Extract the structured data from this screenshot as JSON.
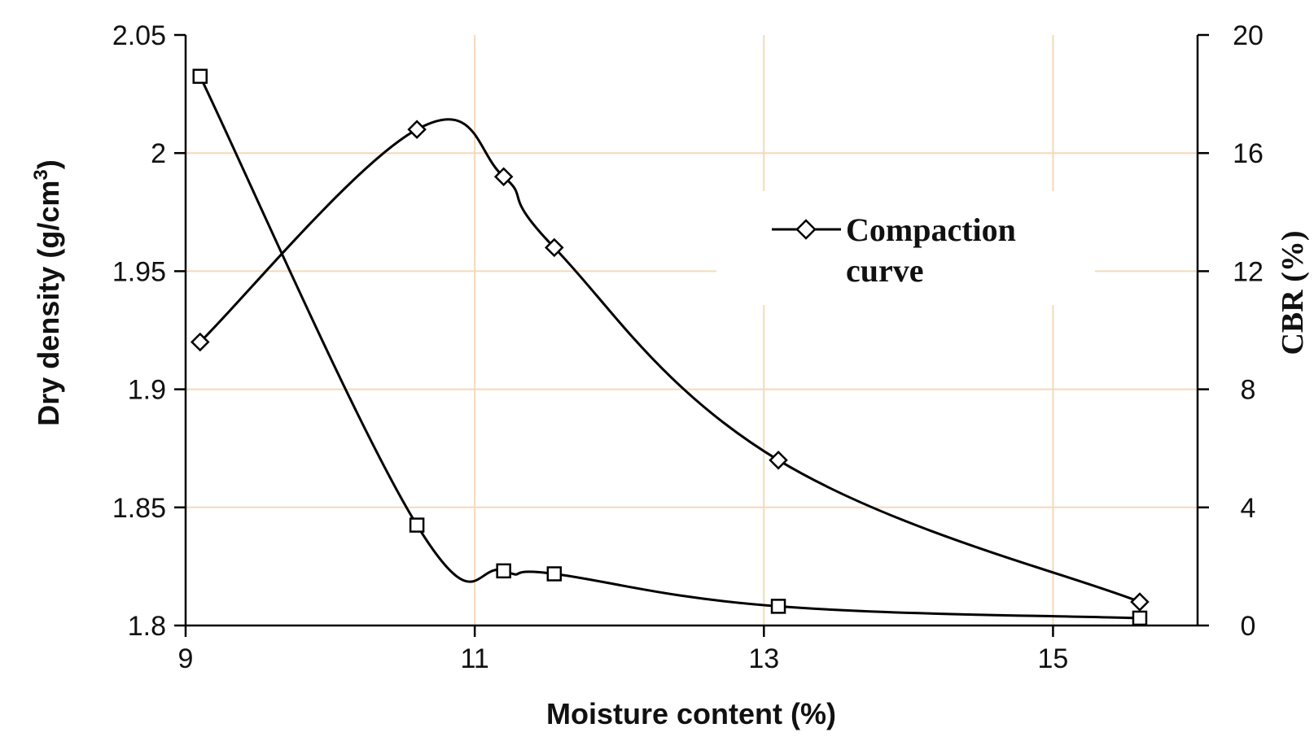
{
  "chart_data": {
    "type": "line",
    "title": "",
    "xlabel": "Moisture content (%)",
    "ylabel_left_main": "Dry  density (g/cm",
    "ylabel_left_sup": "3",
    "ylabel_left_close": ")",
    "ylabel_right": "CBR (%)",
    "xlim": [
      9,
      16
    ],
    "ylim_left": [
      1.8,
      2.05
    ],
    "ylim_right": [
      0,
      20
    ],
    "x_ticks": [
      "9",
      "11",
      "13",
      "15"
    ],
    "x_tick_values": [
      9,
      11,
      13,
      15
    ],
    "y_left_ticks": [
      "1.8",
      "1.85",
      "1.9",
      "1.95",
      "2",
      "2.05"
    ],
    "y_left_tick_values": [
      1.8,
      1.85,
      1.9,
      1.95,
      2.0,
      2.05
    ],
    "y_right_ticks": [
      "0",
      "4",
      "8",
      "12",
      "16",
      "20"
    ],
    "y_right_tick_values": [
      0,
      4,
      8,
      12,
      16,
      20
    ],
    "grid": true,
    "grid_color": "#f5d9b8",
    "line_color": "#000000",
    "legend_position": "upper-right",
    "series": [
      {
        "name": "Compaction curve",
        "axis": "left",
        "marker": "diamond",
        "x": [
          9.1,
          10.6,
          11.2,
          11.55,
          13.1,
          15.6
        ],
        "values": [
          1.92,
          2.01,
          1.99,
          1.96,
          1.87,
          1.81
        ]
      },
      {
        "axis": "right",
        "marker": "square",
        "x": [
          9.1,
          10.6,
          11.2,
          11.55,
          13.1,
          15.6
        ],
        "values": [
          18.6,
          3.4,
          1.85,
          1.75,
          0.65,
          0.25
        ]
      }
    ],
    "legend": {
      "line1": "Compaction",
      "line2": "curve"
    }
  }
}
